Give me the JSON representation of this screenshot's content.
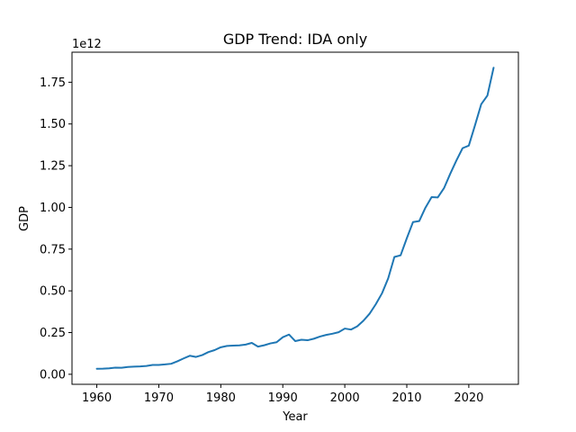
{
  "chart_data": {
    "type": "line",
    "title": "GDP Trend: IDA only",
    "xlabel": "Year",
    "ylabel": "GDP",
    "y_offset_label": "1e12",
    "xlim": [
      1956,
      2028
    ],
    "ylim": [
      -0.06,
      1.93
    ],
    "y_unit_multiplier": 1000000000000.0,
    "x_ticks": [
      1960,
      1970,
      1980,
      1990,
      2000,
      2010,
      2020
    ],
    "x_tick_labels": [
      "1960",
      "1970",
      "1980",
      "1990",
      "2000",
      "2010",
      "2020"
    ],
    "y_ticks": [
      0,
      0.25,
      0.5,
      0.75,
      1.0,
      1.25,
      1.5,
      1.75
    ],
    "y_tick_labels": [
      "0.00",
      "0.25",
      "0.50",
      "0.75",
      "1.00",
      "1.25",
      "1.50",
      "1.75"
    ],
    "grid": false,
    "color": "#1f77b4",
    "series": [
      {
        "x": [
          1960,
          1961,
          1962,
          1963,
          1964,
          1965,
          1966,
          1967,
          1968,
          1969,
          1970,
          1971,
          1972,
          1973,
          1974,
          1975,
          1976,
          1977,
          1978,
          1979,
          1980,
          1981,
          1982,
          1983,
          1984,
          1985,
          1986,
          1987,
          1988,
          1989,
          1990,
          1991,
          1992,
          1993,
          1994,
          1995,
          1996,
          1997,
          1998,
          1999,
          2000,
          2001,
          2002,
          2003,
          2004,
          2005,
          2006,
          2007,
          2008,
          2009,
          2010,
          2011,
          2012,
          2013,
          2014,
          2015,
          2016,
          2017,
          2018,
          2019,
          2020,
          2021,
          2022,
          2023,
          2024
        ],
        "y": [
          0.033,
          0.034,
          0.036,
          0.04,
          0.039,
          0.044,
          0.046,
          0.047,
          0.05,
          0.056,
          0.056,
          0.059,
          0.063,
          0.078,
          0.095,
          0.111,
          0.104,
          0.115,
          0.133,
          0.145,
          0.162,
          0.17,
          0.172,
          0.173,
          0.178,
          0.188,
          0.166,
          0.174,
          0.185,
          0.192,
          0.222,
          0.238,
          0.199,
          0.207,
          0.204,
          0.213,
          0.226,
          0.236,
          0.243,
          0.252,
          0.274,
          0.268,
          0.287,
          0.321,
          0.363,
          0.42,
          0.485,
          0.575,
          0.703,
          0.713,
          0.815,
          0.912,
          0.918,
          0.998,
          1.062,
          1.06,
          1.115,
          1.201,
          1.281,
          1.355,
          1.37,
          1.492,
          1.618,
          1.67,
          1.837
        ]
      }
    ]
  }
}
